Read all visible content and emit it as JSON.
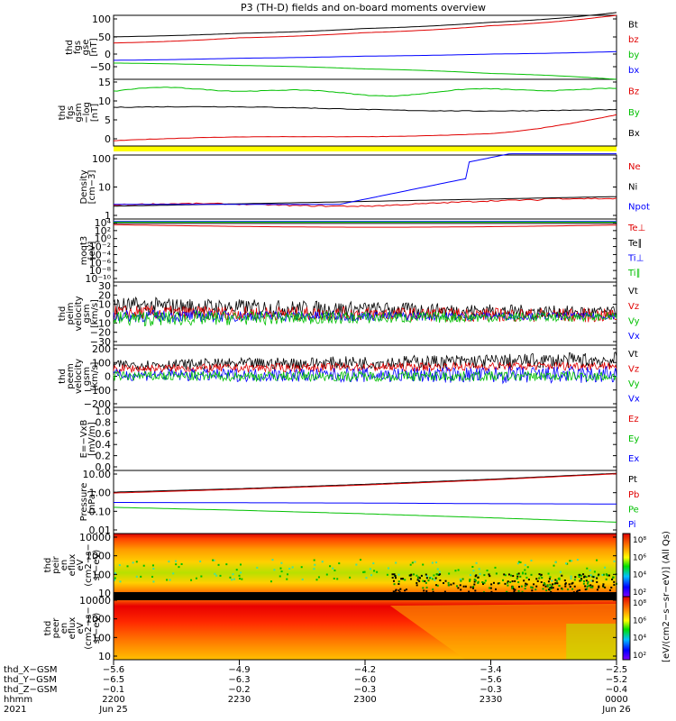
{
  "title": "P3 (TH-D) fields and on-board moments overview",
  "panels": [
    {
      "id": "fgs-gse",
      "ylabel": [
        "thd",
        "fgs",
        "gse",
        "[nT]"
      ],
      "ticks": [
        "100",
        "50",
        "0",
        "−50"
      ],
      "legend": [
        {
          "t": "Bt",
          "c": "#000000"
        },
        {
          "t": "bz",
          "c": "#e00000"
        },
        {
          "t": "by",
          "c": "#00c000"
        },
        {
          "t": "bx",
          "c": "#0000ff"
        }
      ]
    },
    {
      "id": "fgs-gsm-log",
      "ylabel": [
        "thd",
        "fgs",
        "gsm",
        "−log",
        "[nT]"
      ],
      "ticks": [
        "15",
        "10",
        "5",
        "0"
      ],
      "legend": [
        {
          "t": "Bz",
          "c": "#e00000"
        },
        {
          "t": "By",
          "c": "#00c000"
        },
        {
          "t": "Bx",
          "c": "#000000"
        }
      ]
    },
    {
      "id": "density",
      "ylabel": [
        "Density",
        "[cm−3]"
      ],
      "ticks": [
        "100",
        "10",
        "1"
      ],
      "legend": [
        {
          "t": "Ne",
          "c": "#e00000"
        },
        {
          "t": "Ni",
          "c": "#000000"
        },
        {
          "t": "Npot",
          "c": "#0000ff"
        }
      ]
    },
    {
      "id": "temperature",
      "ylabel": [
        "moqt3",
        "[eV]"
      ],
      "ticks": [
        "10⁴",
        "10²",
        "10⁰",
        "10⁻²",
        "10⁻⁴",
        "10⁻⁶",
        "10⁻⁸",
        "10⁻¹⁰"
      ],
      "legend": [
        {
          "t": "Te⊥",
          "c": "#e00000"
        },
        {
          "t": "Te∥",
          "c": "#000000"
        },
        {
          "t": "Ti⊥",
          "c": "#0000ff"
        },
        {
          "t": "Ti∥",
          "c": "#00c000"
        }
      ]
    },
    {
      "id": "peim-velocity",
      "ylabel": [
        "thd",
        "peim",
        "velocity",
        "gsm",
        "[km/s]"
      ],
      "ticks": [
        "30",
        "20",
        "10",
        "0",
        "−10",
        "−20",
        "−30"
      ],
      "legend": [
        {
          "t": "Vt",
          "c": "#000000"
        },
        {
          "t": "Vz",
          "c": "#e00000"
        },
        {
          "t": "Vy",
          "c": "#00c000"
        },
        {
          "t": "Vx",
          "c": "#0000ff"
        }
      ]
    },
    {
      "id": "peem-velocity",
      "ylabel": [
        "thd",
        "peem",
        "velocity",
        "gsm",
        "[km/s]"
      ],
      "ticks": [
        "200",
        "100",
        "0",
        "−100",
        "−200"
      ],
      "legend": [
        {
          "t": "Vt",
          "c": "#000000"
        },
        {
          "t": "Vz",
          "c": "#e00000"
        },
        {
          "t": "Vy",
          "c": "#00c000"
        },
        {
          "t": "Vx",
          "c": "#0000ff"
        }
      ]
    },
    {
      "id": "efield",
      "ylabel": [
        "E=−VxB",
        "[mV/m]"
      ],
      "ticks": [
        "1.0",
        "0.8",
        "0.6",
        "0.4",
        "0.2",
        "0.0"
      ],
      "legend": [
        {
          "t": "Ez",
          "c": "#e00000"
        },
        {
          "t": "Ey",
          "c": "#00c000"
        },
        {
          "t": "Ex",
          "c": "#0000ff"
        }
      ]
    },
    {
      "id": "pressure",
      "ylabel": [
        "Pressure",
        "[nPa]"
      ],
      "ticks": [
        "10.00",
        "1.00",
        "0.10",
        "0.01"
      ],
      "legend": [
        {
          "t": "Pt",
          "c": "#000000"
        },
        {
          "t": "Pb",
          "c": "#e00000"
        },
        {
          "t": "Pe",
          "c": "#00c000"
        },
        {
          "t": "Pi",
          "c": "#0000ff"
        }
      ]
    },
    {
      "id": "peir-spec",
      "ylabel": [
        "thd",
        "peir",
        "en",
        "eflux",
        "eV",
        "(cm2−s−",
        "sr−eV)"
      ],
      "ticks": [
        "10000",
        "1000",
        "100",
        "10"
      ],
      "cbar_ticks": [
        "10⁸",
        "10⁶",
        "10⁴",
        "10²"
      ]
    },
    {
      "id": "peer-spec",
      "ylabel": [
        "thd",
        "peer",
        "en",
        "eflux",
        "eV",
        "(cm2−s−",
        "sr−eV)"
      ],
      "ticks": [
        "10000",
        "1000",
        "100",
        "10"
      ],
      "cbar_ticks": [
        "10⁸",
        "10⁶",
        "10⁴",
        "10²"
      ]
    }
  ],
  "cbar_label": "[eV/(cm2−s−sr−eV)] (All Qs)",
  "xaxis": {
    "rows": [
      {
        "label": "thd_X−GSM",
        "values": [
          "−5.6",
          "−4.9",
          "−4.2",
          "−3.4",
          "−2.5"
        ]
      },
      {
        "label": "thd_Y−GSM",
        "values": [
          "−6.5",
          "−6.3",
          "−6.0",
          "−5.6",
          "−5.2"
        ]
      },
      {
        "label": "thd_Z−GSM",
        "values": [
          "−0.1",
          "−0.2",
          "−0.3",
          "−0.3",
          "−0.4"
        ]
      },
      {
        "label": "hhmm",
        "values": [
          "2200",
          "2230",
          "2300",
          "2330",
          "0000"
        ]
      }
    ],
    "date_label": "2021",
    "dates": [
      {
        "i": 0,
        "t": "Jun 25"
      },
      {
        "i": 4,
        "t": "Jun 26"
      }
    ]
  },
  "chart_data": {
    "type": "line",
    "title": "P3 (TH-D) fields and on-board moments overview",
    "x": {
      "label": "hhmm",
      "ticks": [
        "2200",
        "2230",
        "2300",
        "2330",
        "0000"
      ]
    },
    "series_fgs_gse": [
      {
        "name": "Bt",
        "x": [
          "2200",
          "2230",
          "2300",
          "2330",
          "0000"
        ],
        "values": [
          48,
          58,
          72,
          90,
          118
        ]
      },
      {
        "name": "bz",
        "x": [
          "2200",
          "2230",
          "2300",
          "2330",
          "0000"
        ],
        "values": [
          30,
          45,
          60,
          80,
          110
        ]
      },
      {
        "name": "by",
        "x": [
          "2200",
          "2230",
          "2300",
          "2330",
          "0000"
        ],
        "values": [
          -28,
          -35,
          -45,
          -58,
          -75
        ]
      },
      {
        "name": "bx",
        "x": [
          "2200",
          "2230",
          "2300",
          "2330",
          "0000"
        ],
        "values": [
          -20,
          -14,
          -8,
          -2,
          5
        ]
      }
    ],
    "series_pressure": [
      {
        "name": "Pt",
        "x": [
          "2200",
          "2230",
          "2300",
          "2330",
          "0000"
        ],
        "values": [
          1.0,
          1.5,
          2.5,
          4.5,
          9.0
        ]
      },
      {
        "name": "Pb",
        "x": [
          "2200",
          "2230",
          "2300",
          "2330",
          "0000"
        ],
        "values": [
          0.9,
          1.4,
          2.3,
          4.2,
          8.5
        ]
      },
      {
        "name": "Pe",
        "x": [
          "2200",
          "2230",
          "2300",
          "2330",
          "0000"
        ],
        "values": [
          0.17,
          0.12,
          0.08,
          0.05,
          0.03
        ]
      },
      {
        "name": "Pi",
        "x": [
          "2200",
          "2230",
          "2300",
          "2330",
          "0000"
        ],
        "values": [
          0.3,
          0.29,
          0.28,
          0.26,
          0.25
        ]
      }
    ],
    "series_density": [
      {
        "name": "Ne",
        "x": [
          "2200",
          "2230",
          "2300",
          "2330",
          "0000"
        ],
        "values": [
          1,
          1,
          1.2,
          2.5,
          1
        ]
      },
      {
        "name": "Ni",
        "x": [
          "2200",
          "2230",
          "2300",
          "2330",
          "0000"
        ],
        "values": [
          0.9,
          0.9,
          1.0,
          1.4,
          2.0
        ]
      },
      {
        "name": "Npot",
        "x": [
          "2200",
          "2230",
          "2300",
          "2330",
          "0000"
        ],
        "values": [
          1,
          1,
          1.5,
          8,
          150
        ]
      }
    ]
  }
}
